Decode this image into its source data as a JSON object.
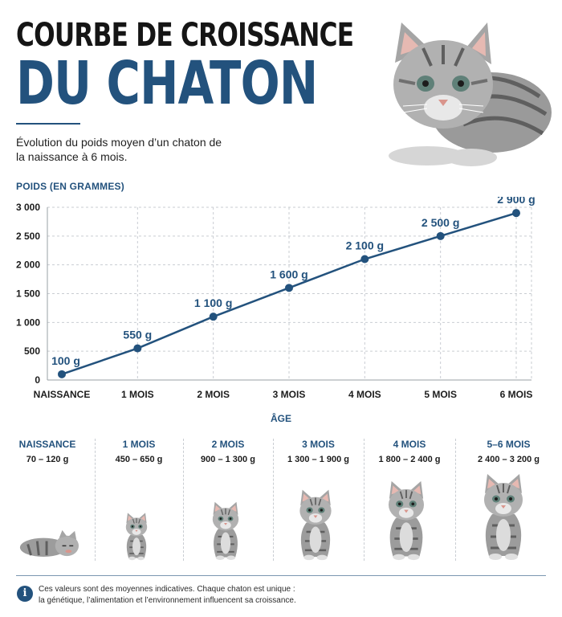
{
  "header": {
    "title_line1": "COURBE DE CROISSANCE",
    "title_line2": "DU CHATON",
    "subtitle": "Évolution du poids moyen d’un chaton de la naissance à 6 mois."
  },
  "colors": {
    "accent": "#23527d",
    "text": "#1c1c1c",
    "grid": "#c9cdd2",
    "fur": "#9c9c9c"
  },
  "chart_data": {
    "type": "line",
    "ylabel": "POIDS (EN GRAMMES)",
    "xlabel": "ÂGE",
    "categories": [
      "NAISSANCE",
      "1 MOIS",
      "2 MOIS",
      "3 MOIS",
      "4 MOIS",
      "5 MOIS",
      "6 MOIS"
    ],
    "series": [
      {
        "values": [
          100,
          550,
          1100,
          1600,
          2100,
          2500,
          2900
        ]
      }
    ],
    "data_labels": [
      "100 g",
      "550 g",
      "1 100 g",
      "1 600 g",
      "2 100 g",
      "2 500 g",
      "2 900 g"
    ],
    "yticks": [
      0,
      500,
      1000,
      1500,
      2000,
      2500,
      3000
    ],
    "ytick_labels": [
      "0",
      "500",
      "1 000",
      "1 500",
      "2 000",
      "2 500",
      "3 000"
    ],
    "ylim": [
      0,
      3000
    ],
    "grid": true,
    "legend": "none"
  },
  "stages": [
    {
      "name": "NAISSANCE",
      "range": "70 – 120 g",
      "size": 0.45
    },
    {
      "name": "1 MOIS",
      "range": "450 – 650 g",
      "size": 0.55
    },
    {
      "name": "2 MOIS",
      "range": "900 – 1 300 g",
      "size": 0.68
    },
    {
      "name": "3 MOIS",
      "range": "1 300 – 1 900 g",
      "size": 0.82
    },
    {
      "name": "4 MOIS",
      "range": "1 800 – 2 400 g",
      "size": 0.92
    },
    {
      "name": "5–6 MOIS",
      "range": "2 400 – 3 200 g",
      "size": 1.0
    }
  ],
  "note": {
    "icon": "info-icon",
    "line1": "Ces valeurs sont des moyennes indicatives. Chaque chaton est unique :",
    "line2": "la génétique, l’alimentation et l’environnement influencent sa croissance."
  }
}
